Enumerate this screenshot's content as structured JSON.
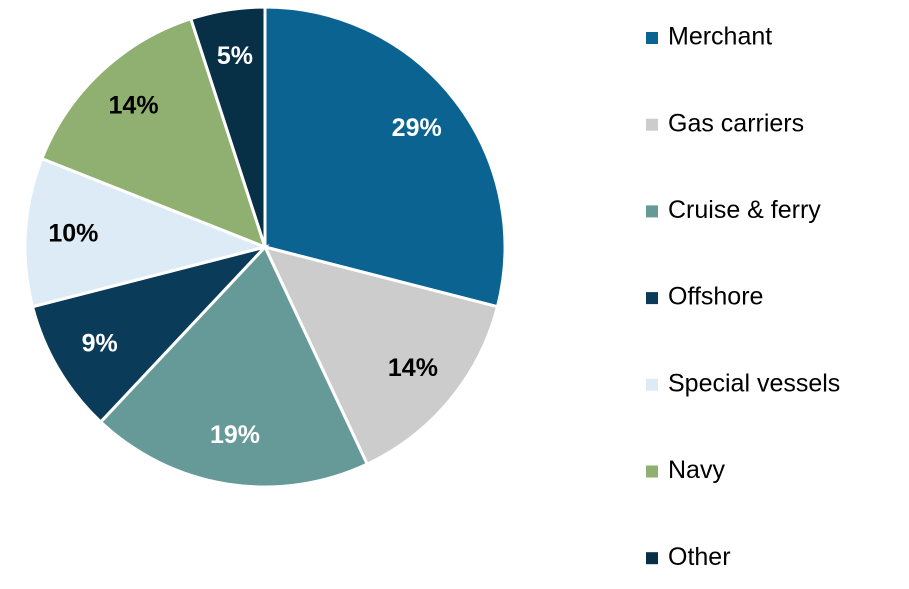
{
  "chart_data": {
    "type": "pie",
    "categories": [
      "Merchant",
      "Gas carriers",
      "Cruise & ferry",
      "Offshore",
      "Special vessels",
      "Navy",
      "Other"
    ],
    "values": [
      29,
      14,
      19,
      9,
      10,
      14,
      5
    ],
    "value_labels": [
      "29%",
      "14%",
      "19%",
      "9%",
      "10%",
      "14%",
      "5%"
    ],
    "colors": [
      "#0b6391",
      "#cccccc",
      "#659a98",
      "#0a3c5a",
      "#ddebf6",
      "#8fb070",
      "#072f45"
    ],
    "legend": "right"
  }
}
